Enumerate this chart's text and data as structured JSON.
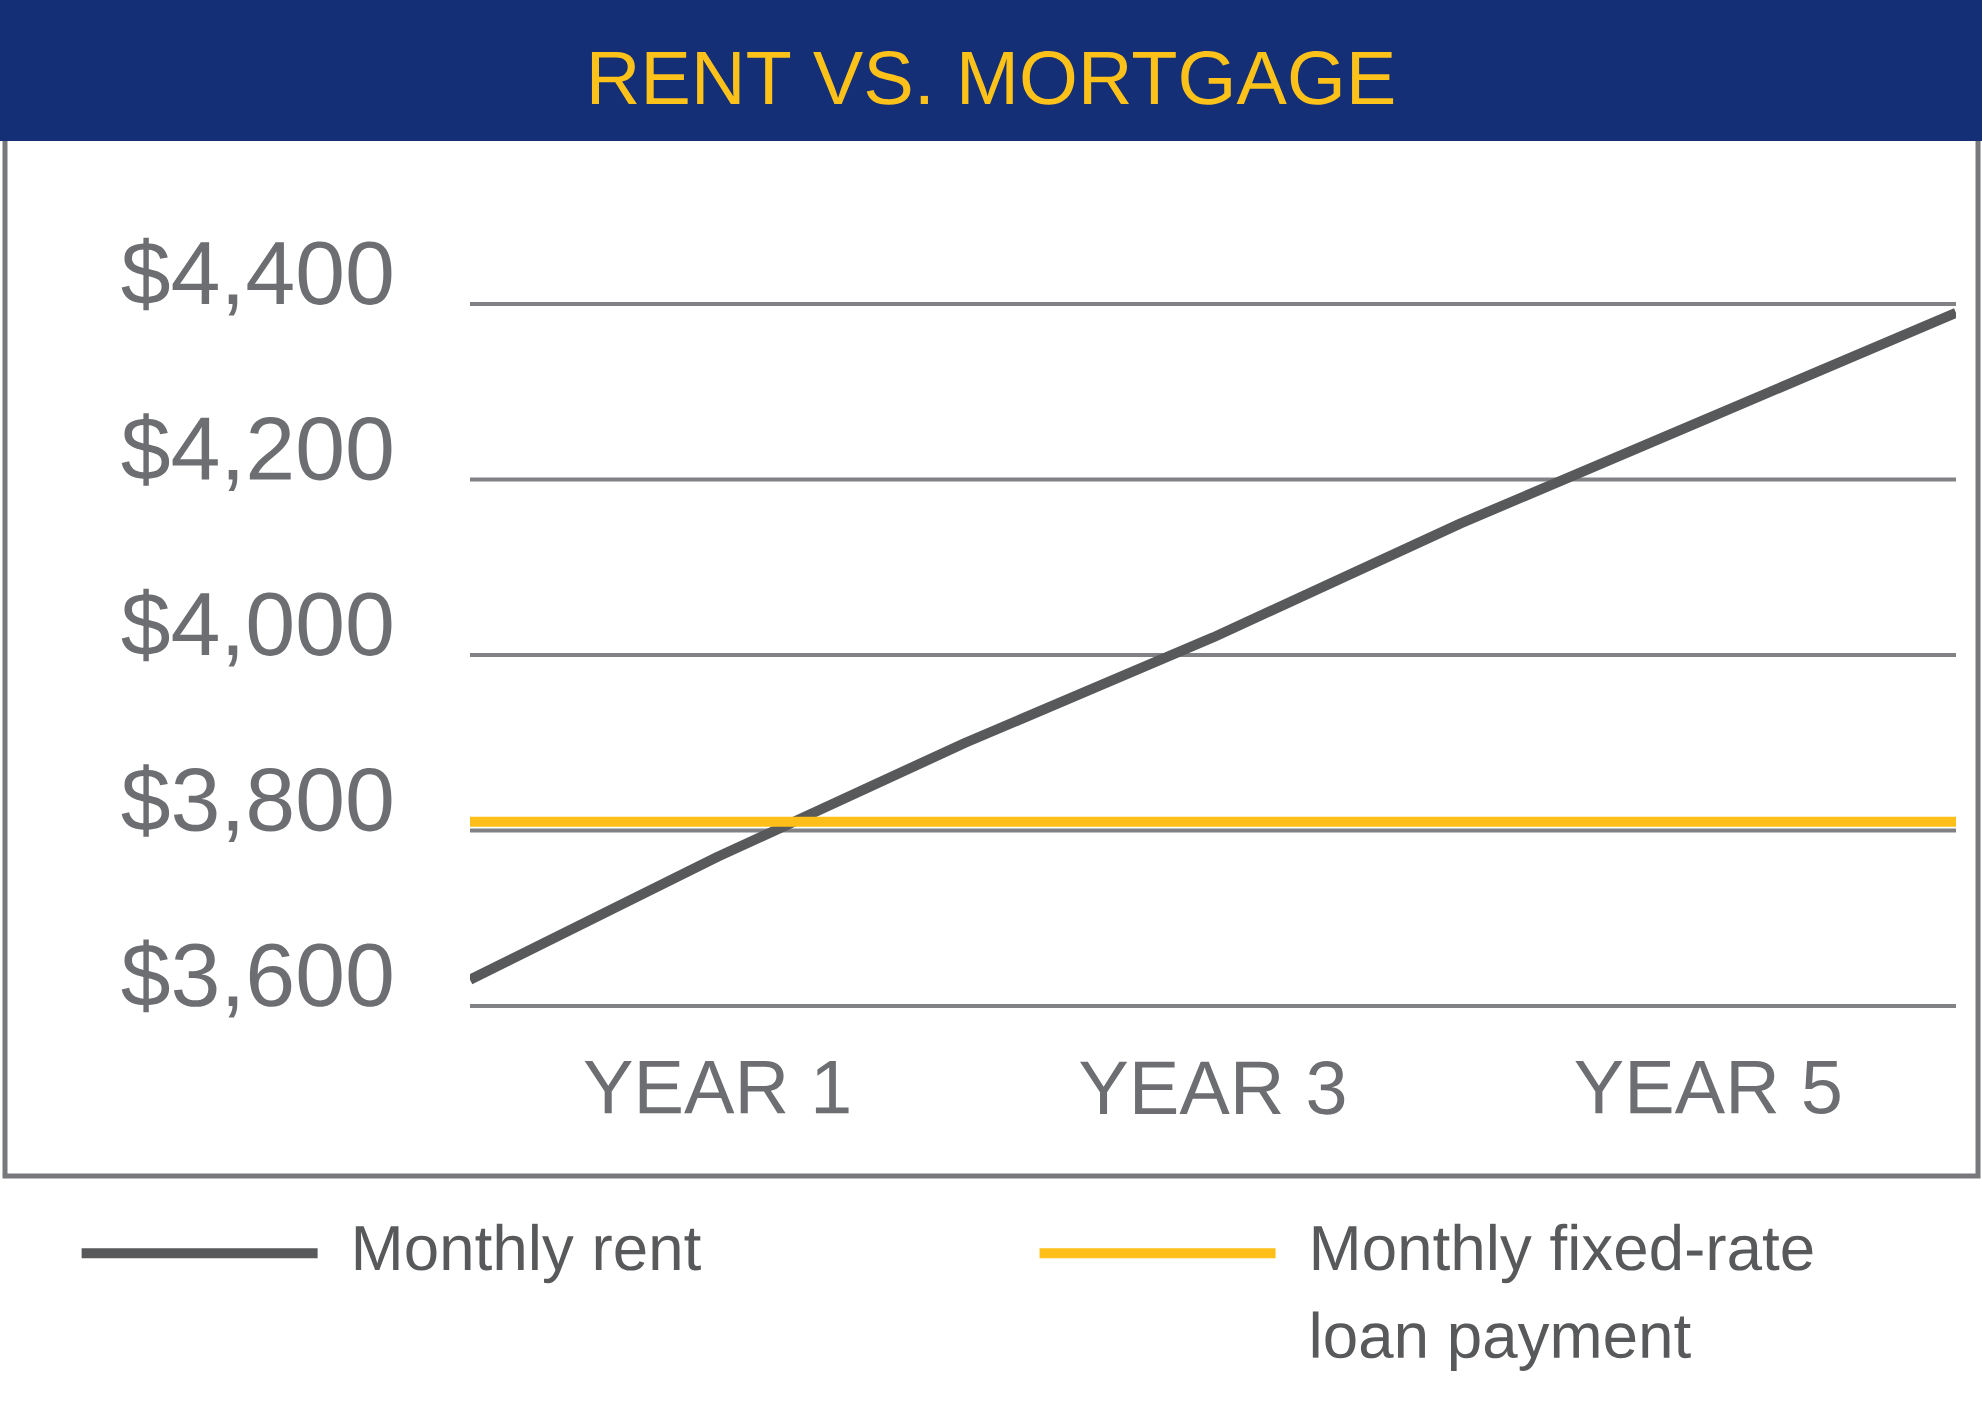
{
  "chart_data": {
    "type": "line",
    "title": "RENT VS. MORTGAGE",
    "categories": [
      null,
      "YEAR 1",
      null,
      "YEAR 3",
      null,
      "YEAR 5",
      null
    ],
    "series": [
      {
        "name": "Monthly rent",
        "color": "#58595b",
        "values": [
          3630,
          3770,
          3900,
          4020,
          4150,
          4270,
          4390
        ]
      },
      {
        "name": "Monthly fixed-rate loan payment",
        "color": "#fdbf18",
        "values": [
          3810,
          3810,
          3810,
          3810,
          3810,
          3810,
          3810
        ]
      }
    ],
    "ylim": [
      3600,
      4400
    ],
    "yticks": [
      {
        "value": 3600,
        "label": "$3,600"
      },
      {
        "value": 3800,
        "label": "$3,800"
      },
      {
        "value": 4000,
        "label": "$4,000"
      },
      {
        "value": 4200,
        "label": "$4,200"
      },
      {
        "value": 4400,
        "label": "$4,400"
      }
    ],
    "grid": "y",
    "legend": "bottom",
    "marker": "none",
    "line_style": "solid"
  }
}
